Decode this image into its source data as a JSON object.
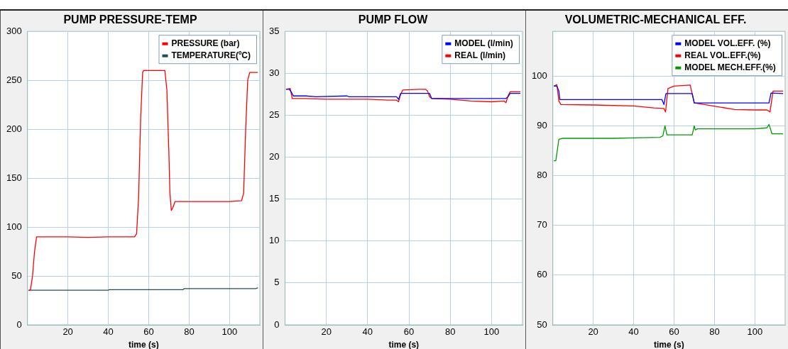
{
  "chart_data": [
    {
      "type": "line",
      "title": "PUMP PRESSURE-TEMP",
      "xlabel": "time (s)",
      "xlim": [
        0,
        115
      ],
      "xticks": [
        20,
        40,
        60,
        80,
        100
      ],
      "ylim": [
        0,
        300
      ],
      "yticks": [
        0,
        50,
        100,
        150,
        200,
        250,
        300
      ],
      "grid": true,
      "legend": "top right",
      "marker": "none",
      "series": [
        {
          "name": "PRESSURE (bar)",
          "color": "#ff0000",
          "x": [
            0.5,
            1.5,
            2.5,
            3.5,
            4.5,
            10,
            20,
            30,
            40,
            53,
            54,
            55,
            56,
            57,
            57.5,
            68,
            69,
            70,
            70.5,
            71.2,
            72,
            73,
            85,
            100,
            106,
            107,
            108,
            109,
            110,
            114
          ],
          "values": [
            35,
            36,
            50,
            75,
            90,
            90,
            90,
            89.5,
            90,
            90,
            93,
            130,
            210,
            258,
            260,
            260,
            240,
            175,
            135,
            117,
            120,
            126,
            126,
            126,
            127,
            135,
            200,
            250,
            258,
            258
          ]
        },
        {
          "name": "TEMPERATURE(ºC)",
          "color": "#1f4f4f",
          "x": [
            0.5,
            40,
            40.5,
            77,
            77.5,
            113,
            114
          ],
          "values": [
            35.5,
            35.5,
            36,
            36,
            37,
            37,
            38
          ]
        }
      ]
    },
    {
      "type": "line",
      "title": "PUMP FLOW",
      "xlabel": "time (s)",
      "xlim": [
        0,
        115
      ],
      "xticks": [
        20,
        40,
        60,
        80,
        100
      ],
      "ylim": [
        0,
        35
      ],
      "yticks": [
        0,
        5,
        10,
        15,
        20,
        25,
        30,
        35
      ],
      "grid": true,
      "legend": "top right",
      "marker": "none",
      "series": [
        {
          "name": "MODEL (l/min)",
          "color": "#0000ff",
          "x": [
            0.5,
            2,
            3,
            4,
            10,
            15,
            30,
            31,
            54,
            55,
            56,
            70,
            71,
            107,
            108,
            109,
            114
          ],
          "values": [
            28.1,
            28.1,
            27.8,
            27.3,
            27.3,
            27.2,
            27.3,
            27.2,
            27.2,
            26.9,
            27.6,
            27.6,
            27.0,
            27.0,
            27.2,
            27.6,
            27.6
          ]
        },
        {
          "name": "REAL (l/min)",
          "color": "#ff0000",
          "x": [
            0.5,
            2.5,
            3.5,
            10,
            20,
            40,
            50,
            54,
            55,
            56,
            57,
            65,
            68,
            69,
            70,
            71,
            80,
            90,
            100,
            106,
            107,
            108,
            109,
            114
          ],
          "values": [
            28.1,
            28.2,
            27.0,
            27.0,
            26.9,
            26.9,
            26.8,
            26.8,
            26.6,
            27.5,
            28.0,
            28.1,
            28.1,
            27.9,
            27.2,
            27.0,
            26.9,
            26.7,
            26.6,
            26.7,
            26.5,
            27.3,
            27.8,
            27.8
          ]
        }
      ]
    },
    {
      "type": "line",
      "title": "VOLUMETRIC-MECHANICAL EFF.",
      "xlabel": "time (s)",
      "xlim": [
        0,
        115
      ],
      "xticks": [
        20,
        40,
        60,
        80,
        100
      ],
      "ylim": [
        50,
        109
      ],
      "yticks": [
        50,
        60,
        70,
        80,
        90,
        100
      ],
      "grid": true,
      "legend": "top right",
      "marker": "none",
      "series": [
        {
          "name": "MODEL VOL.EFF. (%)",
          "color": "#0000ff",
          "x": [
            0.5,
            2,
            3,
            3.5,
            54,
            55,
            56,
            69,
            70,
            107,
            108,
            114
          ],
          "values": [
            98,
            98,
            97,
            95.3,
            95.3,
            94.3,
            96.5,
            96.5,
            94.6,
            94.6,
            96.6,
            96.5
          ]
        },
        {
          "name": "REAL VOL.EFF.(%)",
          "color": "#ff0000",
          "x": [
            0.5,
            2,
            3,
            4,
            20,
            40,
            50,
            55,
            55.8,
            57,
            60,
            68,
            70,
            75,
            90,
            100,
            106,
            107.5,
            109,
            114
          ],
          "values": [
            98,
            98.3,
            95,
            94.3,
            94.2,
            94,
            93.6,
            93.5,
            92.8,
            97.5,
            98,
            98.2,
            94.6,
            94.3,
            93.3,
            93.2,
            93.2,
            92.8,
            97,
            97
          ]
        },
        {
          "name": "MODEL MECH.EFF.(%)",
          "color": "#009900",
          "x": [
            0.5,
            1.5,
            3,
            5,
            30,
            40,
            53,
            54.5,
            55.5,
            56.5,
            69,
            70,
            70.5,
            71.5,
            100,
            106,
            107,
            108.5,
            114
          ],
          "values": [
            83,
            83,
            87.3,
            87.5,
            87.5,
            87.6,
            87.7,
            88,
            90,
            88.2,
            88.2,
            90,
            89.2,
            89.4,
            89.4,
            89.6,
            90.3,
            88.4,
            88.4
          ]
        }
      ]
    }
  ]
}
